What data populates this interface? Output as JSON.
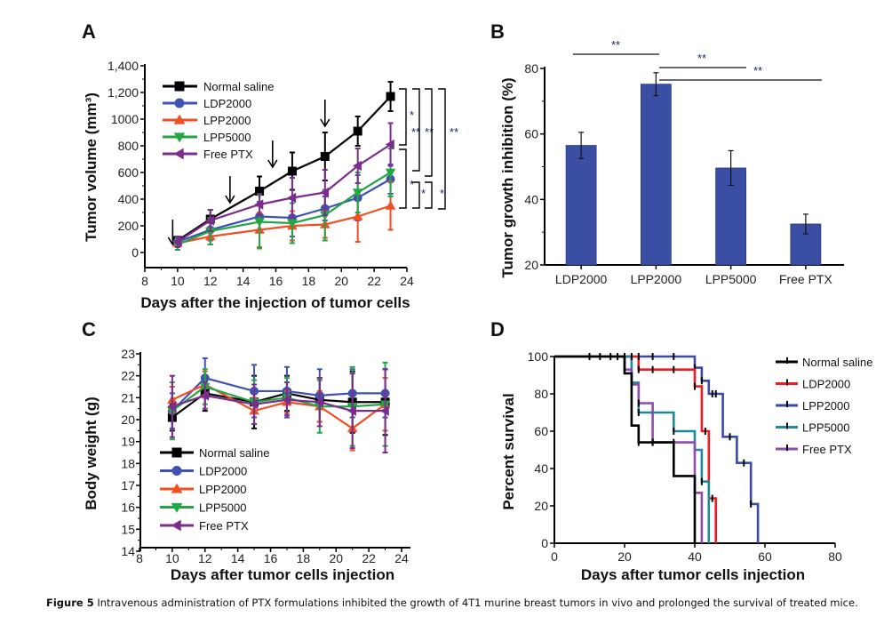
{
  "caption": {
    "label": "Figure 5",
    "text": " Intravenous administration of PTX formulations inhibited the growth of 4T1 murine breast tumors in vivo and prolonged the survival of treated mice."
  },
  "colors": {
    "Normal saline": "#000000",
    "LDP2000": "#3f51b5",
    "LPP2000": "#f04e23",
    "LPP5000": "#22a645",
    "Free PTX": "#7b2d8e",
    "bar": "#3a4fa3",
    "survival": {
      "Normal saline": "#000000",
      "LDP2000": "#ee1c24",
      "LPP2000": "#3b4aa5",
      "LPP5000": "#1b8a9a",
      "Free PTX": "#8e4cab"
    }
  },
  "chart_data": [
    {
      "panel": "A",
      "type": "line",
      "xlabel": "Days after the injection of tumor cells",
      "ylabel": "Tumor volume (mm³)",
      "xlim": [
        8,
        24
      ],
      "ylim": [
        -100,
        1400
      ],
      "xticks": [
        "8",
        "10",
        "12",
        "14",
        "16",
        "18",
        "20",
        "22",
        "24"
      ],
      "yticks": [
        {
          "v": 0,
          "label": "0"
        },
        {
          "v": 200,
          "label": "200"
        },
        {
          "v": 400,
          "label": "400"
        },
        {
          "v": 600,
          "label": "600"
        },
        {
          "v": 800,
          "label": "800"
        },
        {
          "v": 1000,
          "label": "1000"
        },
        {
          "v": 1200,
          "label": "1,200"
        },
        {
          "v": 1400,
          "label": "1,400"
        }
      ],
      "x": [
        10,
        12,
        15,
        17,
        19,
        21,
        23
      ],
      "series": [
        {
          "name": "Normal saline",
          "marker": "square",
          "values": [
            90,
            250,
            460,
            610,
            720,
            910,
            1170
          ],
          "err": [
            30,
            70,
            110,
            140,
            180,
            110,
            110
          ]
        },
        {
          "name": "LDP2000",
          "marker": "circle",
          "values": [
            80,
            170,
            270,
            260,
            330,
            410,
            550
          ],
          "err": [
            30,
            80,
            110,
            140,
            90,
            170,
            110
          ]
        },
        {
          "name": "LPP2000",
          "marker": "triangle-up",
          "values": [
            70,
            120,
            170,
            200,
            210,
            270,
            350
          ],
          "err": [
            30,
            60,
            130,
            110,
            100,
            190,
            180
          ]
        },
        {
          "name": "LPP5000",
          "marker": "triangle-down",
          "values": [
            60,
            160,
            230,
            220,
            280,
            450,
            600
          ],
          "err": [
            40,
            100,
            200,
            150,
            190,
            150,
            180
          ]
        },
        {
          "name": "Free PTX",
          "marker": "triangle-left",
          "values": [
            80,
            240,
            360,
            410,
            450,
            650,
            810
          ],
          "err": [
            40,
            80,
            80,
            150,
            170,
            130,
            160
          ]
        }
      ],
      "arrows_at_days": [
        9.7,
        13.2,
        15.8,
        19
      ],
      "significance": [
        {
          "label": "*",
          "between": [
            "Normal saline",
            "Free PTX"
          ]
        },
        {
          "label": "**",
          "between": [
            "Normal saline",
            "LPP5000"
          ]
        },
        {
          "label": "**",
          "between": [
            "Normal saline",
            "LDP2000"
          ]
        },
        {
          "label": "**",
          "between": [
            "Normal saline",
            "LPP2000"
          ]
        },
        {
          "label": "*",
          "between": [
            "Free PTX",
            "LPP2000"
          ]
        },
        {
          "label": "*",
          "between": [
            "LPP5000",
            "LPP2000"
          ]
        },
        {
          "label": "*",
          "between": [
            "LDP2000",
            "LPP2000"
          ]
        }
      ],
      "legend": [
        "Normal saline",
        "LDP2000",
        "LPP2000",
        "LPP5000",
        "Free PTX"
      ],
      "legend_position": "top-left"
    },
    {
      "panel": "B",
      "type": "bar",
      "ylabel": "Tumor growth inhibition (%)",
      "xlabel": "",
      "ylim": [
        20,
        80
      ],
      "yticks": [
        20,
        40,
        60,
        80
      ],
      "categories": [
        "LDP2000",
        "LPP2000",
        "LPP5000",
        "Free PTX"
      ],
      "values": [
        56.5,
        75.2,
        49.6,
        32.5
      ],
      "err": [
        4.0,
        3.5,
        5.3,
        3.0
      ],
      "significance": [
        {
          "label": "**",
          "between": [
            "LDP2000",
            "LPP2000"
          ]
        },
        {
          "label": "**",
          "between": [
            "LPP2000",
            "LPP5000"
          ]
        },
        {
          "label": "**",
          "between": [
            "LPP2000",
            "Free PTX"
          ]
        }
      ]
    },
    {
      "panel": "C",
      "type": "line",
      "xlabel": "Days after tumor cells injection",
      "ylabel": "Body weight (g)",
      "xlim": [
        8,
        24
      ],
      "ylim": [
        14,
        23
      ],
      "xticks": [
        "8",
        "10",
        "12",
        "14",
        "16",
        "18",
        "20",
        "22",
        "24"
      ],
      "yticks": [
        14,
        15,
        16,
        17,
        18,
        19,
        20,
        21,
        22,
        23
      ],
      "x": [
        10,
        12,
        15,
        17,
        19,
        21,
        23
      ],
      "series": [
        {
          "name": "Normal saline",
          "marker": "square",
          "values": [
            20.1,
            21.2,
            20.8,
            21.2,
            20.9,
            20.8,
            20.8
          ],
          "err": [
            0.6,
            0.8,
            1.2,
            0.8,
            1.0,
            1.4,
            1.5
          ]
        },
        {
          "name": "LDP2000",
          "marker": "circle",
          "values": [
            20.4,
            21.9,
            21.3,
            21.3,
            21.1,
            21.2,
            21.2
          ],
          "err": [
            0.8,
            0.9,
            1.2,
            1.1,
            1.2,
            1.1,
            1.1
          ]
        },
        {
          "name": "LPP2000",
          "marker": "triangle-up",
          "values": [
            20.9,
            21.6,
            20.4,
            20.8,
            20.6,
            19.6,
            20.7
          ],
          "err": [
            0.6,
            0.6,
            0.6,
            0.5,
            0.7,
            1.0,
            1.2
          ]
        },
        {
          "name": "LPP5000",
          "marker": "triangle-down",
          "values": [
            20.4,
            21.5,
            20.8,
            21.0,
            20.6,
            20.6,
            20.7
          ],
          "err": [
            1.3,
            0.8,
            1.0,
            0.9,
            1.2,
            1.8,
            1.9
          ]
        },
        {
          "name": "Free PTX",
          "marker": "triangle-left",
          "values": [
            20.6,
            21.1,
            20.7,
            20.9,
            20.8,
            20.4,
            20.4
          ],
          "err": [
            1.4,
            0.6,
            0.9,
            0.8,
            1.1,
            1.7,
            1.9
          ]
        }
      ],
      "legend": [
        "Normal saline",
        "LDP2000",
        "LPP2000",
        "LPP5000",
        "Free PTX"
      ],
      "legend_position": "bottom-left"
    },
    {
      "panel": "D",
      "type": "line",
      "subtype": "kaplan-meier",
      "xlabel": "Days after tumor cells injection",
      "ylabel": "Percent survival",
      "xlim": [
        0,
        80
      ],
      "ylim": [
        0,
        100
      ],
      "xticks": [
        0,
        20,
        40,
        60,
        80
      ],
      "yticks": [
        0,
        20,
        40,
        60,
        80,
        100
      ],
      "series": [
        {
          "name": "Normal saline",
          "steps": [
            [
              0,
              100
            ],
            [
              20,
              100
            ],
            [
              20,
              91
            ],
            [
              22,
              91
            ],
            [
              22,
              63
            ],
            [
              24,
              63
            ],
            [
              24,
              54
            ],
            [
              34,
              54
            ],
            [
              34,
              36
            ],
            [
              40,
              36
            ],
            [
              40,
              0
            ]
          ],
          "censored": [
            [
              10,
              100
            ],
            [
              13,
              100
            ],
            [
              16,
              100
            ],
            [
              18,
              100
            ],
            [
              20,
              100
            ],
            [
              22,
              100
            ],
            [
              24,
              100
            ],
            [
              28,
              100
            ],
            [
              34,
              100
            ],
            [
              24,
              54
            ],
            [
              28,
              54
            ],
            [
              34,
              54
            ],
            [
              40,
              29
            ]
          ]
        },
        {
          "name": "LDP2000",
          "steps": [
            [
              0,
              100
            ],
            [
              24,
              100
            ],
            [
              24,
              93
            ],
            [
              40,
              93
            ],
            [
              40,
              84
            ],
            [
              42,
              84
            ],
            [
              42,
              60
            ],
            [
              44,
              60
            ],
            [
              44,
              24
            ],
            [
              46,
              24
            ],
            [
              46,
              0
            ]
          ],
          "censored": [
            [
              24,
              93
            ],
            [
              28,
              93
            ],
            [
              34,
              93
            ],
            [
              40,
              84
            ],
            [
              43,
              60
            ],
            [
              45,
              24
            ]
          ]
        },
        {
          "name": "LPP2000",
          "steps": [
            [
              0,
              100
            ],
            [
              40,
              100
            ],
            [
              40,
              94
            ],
            [
              42,
              94
            ],
            [
              42,
              87
            ],
            [
              44,
              87
            ],
            [
              44,
              80
            ],
            [
              48,
              80
            ],
            [
              48,
              57
            ],
            [
              52,
              57
            ],
            [
              52,
              43
            ],
            [
              56,
              43
            ],
            [
              56,
              21
            ],
            [
              58,
              21
            ],
            [
              58,
              0
            ]
          ],
          "censored": [
            [
              40,
              94
            ],
            [
              42,
              87
            ],
            [
              45,
              80
            ],
            [
              46,
              80
            ],
            [
              50,
              57
            ],
            [
              54,
              43
            ],
            [
              56,
              21
            ]
          ]
        },
        {
          "name": "LPP5000",
          "steps": [
            [
              0,
              100
            ],
            [
              22,
              100
            ],
            [
              22,
              86
            ],
            [
              24,
              86
            ],
            [
              24,
              70
            ],
            [
              34,
              70
            ],
            [
              34,
              60
            ],
            [
              40,
              60
            ],
            [
              40,
              50
            ],
            [
              42,
              50
            ],
            [
              42,
              33
            ],
            [
              44,
              33
            ],
            [
              44,
              0
            ]
          ],
          "censored": [
            [
              22,
              86
            ],
            [
              24,
              70
            ],
            [
              34,
              60
            ],
            [
              40,
              50
            ],
            [
              42,
              33
            ]
          ]
        },
        {
          "name": "Free PTX",
          "steps": [
            [
              0,
              100
            ],
            [
              20,
              100
            ],
            [
              20,
              93
            ],
            [
              22,
              93
            ],
            [
              22,
              85
            ],
            [
              24,
              85
            ],
            [
              24,
              75
            ],
            [
              28,
              75
            ],
            [
              28,
              54
            ],
            [
              40,
              54
            ],
            [
              40,
              27
            ],
            [
              42,
              27
            ],
            [
              42,
              0
            ]
          ],
          "censored": [
            [
              22,
              85
            ],
            [
              24,
              75
            ],
            [
              28,
              54
            ],
            [
              40,
              27
            ]
          ]
        }
      ],
      "legend": [
        "Normal saline",
        "LDP2000",
        "LPP2000",
        "LPP5000",
        "Free PTX"
      ],
      "legend_position": "right"
    }
  ]
}
